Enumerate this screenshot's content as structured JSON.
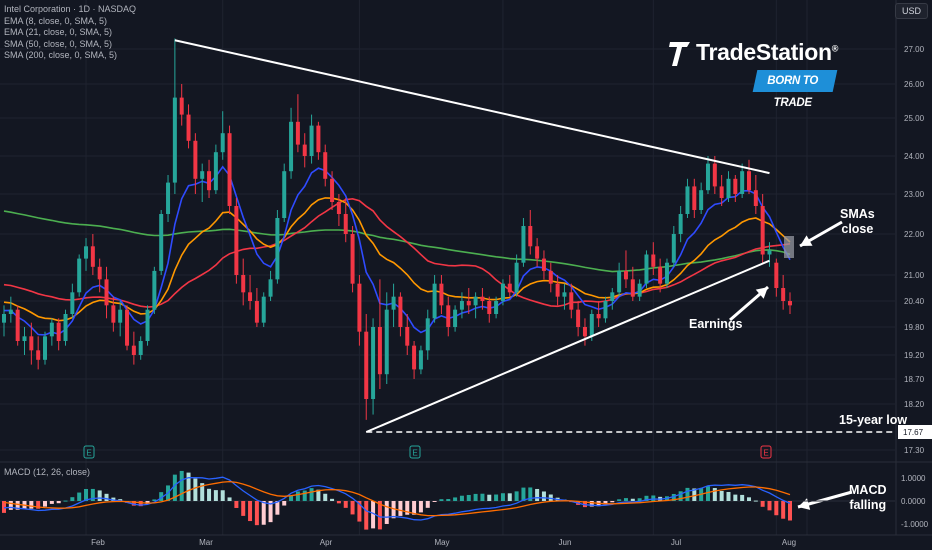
{
  "header": {
    "currency_button": "USD",
    "legend": [
      "Intel Corporation · 1D · NASDAQ",
      "EMA (8, close, 0, SMA, 5)",
      "EMA (21, close, 0, SMA, 5)",
      "SMA (50, close, 0, SMA, 5)",
      "SMA (200, close, 0, SMA, 5)"
    ]
  },
  "logo": {
    "name": "TradeStation",
    "registered": "®",
    "tagline": "BORN TO TRADE"
  },
  "annotations": {
    "smas": "SMAs\nclose",
    "earnings": "Earnings",
    "low": "15-year low",
    "macd": "MACD\nfalling"
  },
  "colors": {
    "background": "#131722",
    "up": "#26a69a",
    "down": "#f23645",
    "ema8": "#2f4bff",
    "ema21": "#ff9800",
    "sma50": "#f23645",
    "sma200": "#4caf50",
    "macd_line": "#2962ff",
    "signal_line": "#ff6d00",
    "annotation": "#ffffff"
  },
  "chart_data": {
    "type": "candlestick",
    "ticker": "Intel Corporation",
    "interval": "1D",
    "exchange": "NASDAQ",
    "y_axis_ticks": [
      "27.00",
      "26.00",
      "25.00",
      "24.00",
      "23.00",
      "22.00",
      "21.00",
      "20.40",
      "19.80",
      "19.20",
      "18.70",
      "18.20",
      "17.30"
    ],
    "x_axis_ticks": [
      "Feb",
      "Mar",
      "Apr",
      "May",
      "Jun",
      "Jul",
      "Aug"
    ],
    "last_price_label": "17.67",
    "macd_axis_ticks": [
      "1.0000",
      "0.0000",
      "-1.0000"
    ],
    "macd_label": "MACD (12, 26, close)",
    "earnings_markers": [
      "E",
      "E",
      "E"
    ],
    "candles": [
      {
        "o": 19.9,
        "h": 20.3,
        "l": 19.6,
        "c": 20.1
      },
      {
        "o": 20.1,
        "h": 20.5,
        "l": 19.9,
        "c": 20.2
      },
      {
        "o": 20.2,
        "h": 20.3,
        "l": 19.4,
        "c": 19.5
      },
      {
        "o": 19.5,
        "h": 19.8,
        "l": 19.2,
        "c": 19.6
      },
      {
        "o": 19.6,
        "h": 19.9,
        "l": 19.0,
        "c": 19.3
      },
      {
        "o": 19.3,
        "h": 19.6,
        "l": 18.9,
        "c": 19.1
      },
      {
        "o": 19.1,
        "h": 19.7,
        "l": 19.0,
        "c": 19.6
      },
      {
        "o": 19.6,
        "h": 20.0,
        "l": 19.4,
        "c": 19.9
      },
      {
        "o": 19.9,
        "h": 20.0,
        "l": 19.3,
        "c": 19.5
      },
      {
        "o": 19.5,
        "h": 20.2,
        "l": 19.4,
        "c": 20.1
      },
      {
        "o": 20.1,
        "h": 20.8,
        "l": 20.0,
        "c": 20.6
      },
      {
        "o": 20.6,
        "h": 21.5,
        "l": 20.5,
        "c": 21.4
      },
      {
        "o": 21.4,
        "h": 21.9,
        "l": 21.1,
        "c": 21.7
      },
      {
        "o": 21.7,
        "h": 22.0,
        "l": 21.0,
        "c": 21.2
      },
      {
        "o": 21.2,
        "h": 21.4,
        "l": 20.6,
        "c": 20.9
      },
      {
        "o": 20.9,
        "h": 21.2,
        "l": 20.0,
        "c": 20.3
      },
      {
        "o": 20.3,
        "h": 20.5,
        "l": 19.7,
        "c": 19.9
      },
      {
        "o": 19.9,
        "h": 20.4,
        "l": 19.6,
        "c": 20.2
      },
      {
        "o": 20.2,
        "h": 20.3,
        "l": 19.3,
        "c": 19.4
      },
      {
        "o": 19.4,
        "h": 19.7,
        "l": 19.0,
        "c": 19.2
      },
      {
        "o": 19.2,
        "h": 19.6,
        "l": 19.1,
        "c": 19.5
      },
      {
        "o": 19.5,
        "h": 20.3,
        "l": 19.4,
        "c": 20.2
      },
      {
        "o": 20.2,
        "h": 21.2,
        "l": 20.1,
        "c": 21.1
      },
      {
        "o": 21.1,
        "h": 22.6,
        "l": 21.0,
        "c": 22.5
      },
      {
        "o": 22.5,
        "h": 23.5,
        "l": 22.3,
        "c": 23.3
      },
      {
        "o": 23.3,
        "h": 27.3,
        "l": 23.0,
        "c": 25.6
      },
      {
        "o": 25.6,
        "h": 26.0,
        "l": 24.8,
        "c": 25.1
      },
      {
        "o": 25.1,
        "h": 25.4,
        "l": 24.2,
        "c": 24.4
      },
      {
        "o": 24.4,
        "h": 24.6,
        "l": 23.0,
        "c": 23.4
      },
      {
        "o": 23.4,
        "h": 23.8,
        "l": 22.8,
        "c": 23.6
      },
      {
        "o": 23.6,
        "h": 23.9,
        "l": 22.9,
        "c": 23.1
      },
      {
        "o": 23.1,
        "h": 24.3,
        "l": 23.0,
        "c": 24.1
      },
      {
        "o": 24.1,
        "h": 25.2,
        "l": 23.9,
        "c": 24.6
      },
      {
        "o": 24.6,
        "h": 24.8,
        "l": 22.5,
        "c": 22.7
      },
      {
        "o": 22.7,
        "h": 22.9,
        "l": 20.8,
        "c": 21.0
      },
      {
        "o": 21.0,
        "h": 21.4,
        "l": 20.3,
        "c": 20.6
      },
      {
        "o": 20.6,
        "h": 21.0,
        "l": 20.2,
        "c": 20.4
      },
      {
        "o": 20.4,
        "h": 20.7,
        "l": 19.8,
        "c": 19.9
      },
      {
        "o": 19.9,
        "h": 20.6,
        "l": 19.8,
        "c": 20.5
      },
      {
        "o": 20.5,
        "h": 21.1,
        "l": 20.4,
        "c": 20.9
      },
      {
        "o": 20.9,
        "h": 22.6,
        "l": 20.8,
        "c": 22.4
      },
      {
        "o": 22.4,
        "h": 23.8,
        "l": 22.3,
        "c": 23.6
      },
      {
        "o": 23.6,
        "h": 25.3,
        "l": 23.4,
        "c": 24.9
      },
      {
        "o": 24.9,
        "h": 25.7,
        "l": 24.1,
        "c": 24.3
      },
      {
        "o": 24.3,
        "h": 24.6,
        "l": 23.7,
        "c": 24.0
      },
      {
        "o": 24.0,
        "h": 25.1,
        "l": 23.8,
        "c": 24.8
      },
      {
        "o": 24.8,
        "h": 24.9,
        "l": 23.9,
        "c": 24.1
      },
      {
        "o": 24.1,
        "h": 24.3,
        "l": 23.2,
        "c": 23.4
      },
      {
        "o": 23.4,
        "h": 23.6,
        "l": 22.6,
        "c": 22.8
      },
      {
        "o": 22.8,
        "h": 23.0,
        "l": 22.2,
        "c": 22.5
      },
      {
        "o": 22.5,
        "h": 22.9,
        "l": 21.8,
        "c": 22.0
      },
      {
        "o": 22.0,
        "h": 22.2,
        "l": 20.6,
        "c": 20.8
      },
      {
        "o": 20.8,
        "h": 21.0,
        "l": 19.4,
        "c": 19.7
      },
      {
        "o": 19.7,
        "h": 20.1,
        "l": 17.9,
        "c": 18.3
      },
      {
        "o": 18.3,
        "h": 20.0,
        "l": 18.0,
        "c": 19.8
      },
      {
        "o": 19.8,
        "h": 20.9,
        "l": 18.5,
        "c": 18.8
      },
      {
        "o": 18.8,
        "h": 20.6,
        "l": 18.6,
        "c": 20.2
      },
      {
        "o": 20.2,
        "h": 20.8,
        "l": 19.8,
        "c": 20.5
      },
      {
        "o": 20.5,
        "h": 20.6,
        "l": 19.6,
        "c": 19.8
      },
      {
        "o": 19.8,
        "h": 20.1,
        "l": 19.2,
        "c": 19.4
      },
      {
        "o": 19.4,
        "h": 19.5,
        "l": 18.7,
        "c": 18.9
      },
      {
        "o": 18.9,
        "h": 19.4,
        "l": 18.8,
        "c": 19.3
      },
      {
        "o": 19.3,
        "h": 20.2,
        "l": 19.1,
        "c": 20.0
      },
      {
        "o": 20.0,
        "h": 21.0,
        "l": 19.9,
        "c": 20.8
      },
      {
        "o": 20.8,
        "h": 21.0,
        "l": 20.1,
        "c": 20.3
      },
      {
        "o": 20.3,
        "h": 20.5,
        "l": 19.6,
        "c": 19.8
      },
      {
        "o": 19.8,
        "h": 20.3,
        "l": 19.7,
        "c": 20.2
      },
      {
        "o": 20.2,
        "h": 20.6,
        "l": 20.0,
        "c": 20.4
      },
      {
        "o": 20.4,
        "h": 20.7,
        "l": 20.1,
        "c": 20.3
      },
      {
        "o": 20.3,
        "h": 20.6,
        "l": 20.0,
        "c": 20.5
      },
      {
        "o": 20.5,
        "h": 20.7,
        "l": 20.2,
        "c": 20.4
      },
      {
        "o": 20.4,
        "h": 20.5,
        "l": 19.9,
        "c": 20.1
      },
      {
        "o": 20.1,
        "h": 20.5,
        "l": 20.0,
        "c": 20.4
      },
      {
        "o": 20.4,
        "h": 20.9,
        "l": 20.3,
        "c": 20.8
      },
      {
        "o": 20.8,
        "h": 21.0,
        "l": 20.5,
        "c": 20.6
      },
      {
        "o": 20.6,
        "h": 21.5,
        "l": 20.5,
        "c": 21.3
      },
      {
        "o": 21.3,
        "h": 22.4,
        "l": 21.2,
        "c": 22.2
      },
      {
        "o": 22.2,
        "h": 22.6,
        "l": 21.5,
        "c": 21.7
      },
      {
        "o": 21.7,
        "h": 21.9,
        "l": 21.2,
        "c": 21.4
      },
      {
        "o": 21.4,
        "h": 21.6,
        "l": 20.9,
        "c": 21.1
      },
      {
        "o": 21.1,
        "h": 21.3,
        "l": 20.6,
        "c": 20.8
      },
      {
        "o": 20.8,
        "h": 21.0,
        "l": 20.3,
        "c": 20.5
      },
      {
        "o": 20.5,
        "h": 20.8,
        "l": 20.2,
        "c": 20.6
      },
      {
        "o": 20.6,
        "h": 20.8,
        "l": 20.0,
        "c": 20.2
      },
      {
        "o": 20.2,
        "h": 20.4,
        "l": 19.6,
        "c": 19.8
      },
      {
        "o": 19.8,
        "h": 20.0,
        "l": 19.4,
        "c": 19.6
      },
      {
        "o": 19.6,
        "h": 20.2,
        "l": 19.5,
        "c": 20.1
      },
      {
        "o": 20.1,
        "h": 20.4,
        "l": 19.8,
        "c": 20.0
      },
      {
        "o": 20.0,
        "h": 20.5,
        "l": 19.9,
        "c": 20.4
      },
      {
        "o": 20.4,
        "h": 20.7,
        "l": 20.2,
        "c": 20.6
      },
      {
        "o": 20.6,
        "h": 21.3,
        "l": 20.5,
        "c": 21.1
      },
      {
        "o": 21.1,
        "h": 21.6,
        "l": 20.7,
        "c": 20.9
      },
      {
        "o": 20.9,
        "h": 21.2,
        "l": 20.4,
        "c": 20.5
      },
      {
        "o": 20.5,
        "h": 20.9,
        "l": 20.4,
        "c": 20.8
      },
      {
        "o": 20.8,
        "h": 21.6,
        "l": 20.7,
        "c": 21.5
      },
      {
        "o": 21.5,
        "h": 21.8,
        "l": 21.0,
        "c": 21.2
      },
      {
        "o": 21.2,
        "h": 21.4,
        "l": 20.6,
        "c": 20.8
      },
      {
        "o": 20.8,
        "h": 21.4,
        "l": 20.7,
        "c": 21.3
      },
      {
        "o": 21.3,
        "h": 22.2,
        "l": 21.2,
        "c": 22.0
      },
      {
        "o": 22.0,
        "h": 22.7,
        "l": 21.8,
        "c": 22.5
      },
      {
        "o": 22.5,
        "h": 23.4,
        "l": 22.4,
        "c": 23.2
      },
      {
        "o": 23.2,
        "h": 23.4,
        "l": 22.4,
        "c": 22.6
      },
      {
        "o": 22.6,
        "h": 23.3,
        "l": 22.5,
        "c": 23.1
      },
      {
        "o": 23.1,
        "h": 24.0,
        "l": 23.0,
        "c": 23.8
      },
      {
        "o": 23.8,
        "h": 24.0,
        "l": 23.0,
        "c": 23.2
      },
      {
        "o": 23.2,
        "h": 23.5,
        "l": 22.7,
        "c": 22.9
      },
      {
        "o": 22.9,
        "h": 23.6,
        "l": 22.8,
        "c": 23.4
      },
      {
        "o": 23.4,
        "h": 23.5,
        "l": 22.8,
        "c": 23.0
      },
      {
        "o": 23.0,
        "h": 23.8,
        "l": 22.9,
        "c": 23.6
      },
      {
        "o": 23.6,
        "h": 23.9,
        "l": 23.0,
        "c": 23.1
      },
      {
        "o": 23.1,
        "h": 23.5,
        "l": 22.5,
        "c": 22.7
      },
      {
        "o": 22.7,
        "h": 23.0,
        "l": 21.3,
        "c": 21.5
      },
      {
        "o": 21.5,
        "h": 21.8,
        "l": 21.2,
        "c": 21.6
      },
      {
        "o": 21.3,
        "h": 21.4,
        "l": 20.5,
        "c": 20.7
      },
      {
        "o": 20.7,
        "h": 21.0,
        "l": 20.2,
        "c": 20.4
      },
      {
        "o": 20.4,
        "h": 20.6,
        "l": 20.1,
        "c": 20.3
      }
    ]
  }
}
